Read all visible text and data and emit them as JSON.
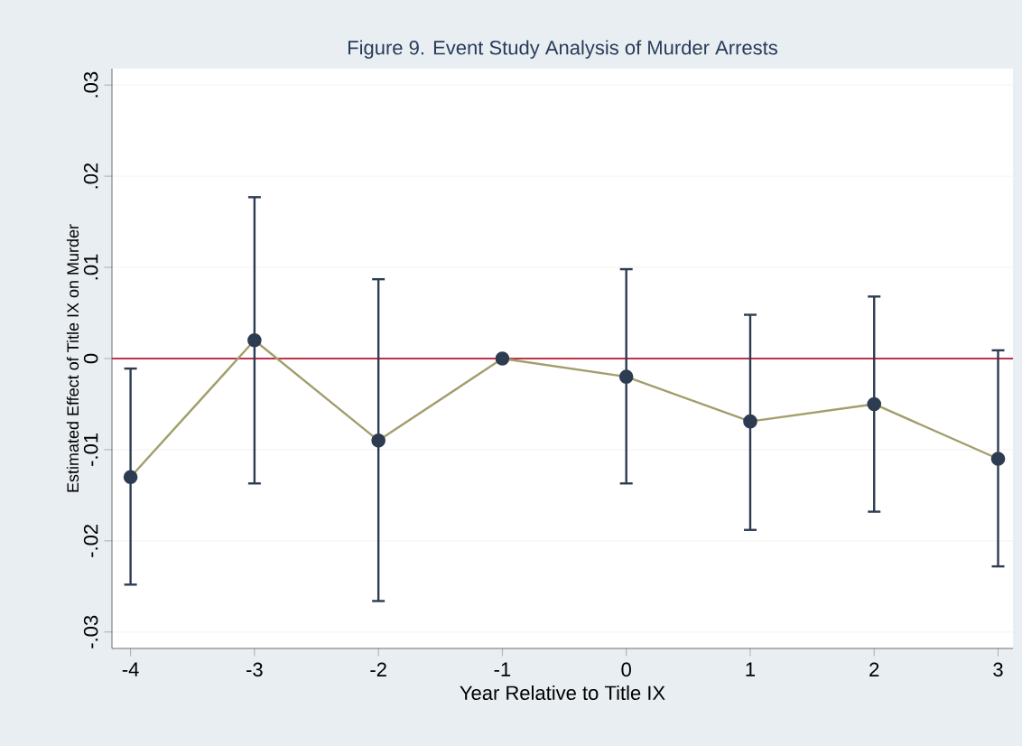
{
  "chart_data": {
    "type": "line",
    "title": "Figure 9. Event Study Analysis of Murder Arrests",
    "xlabel": "Year Relative to Title IX",
    "ylabel": "Estimated Effect of Title IX on Murder",
    "x": [
      -4,
      -3,
      -2,
      -1,
      0,
      1,
      2,
      3
    ],
    "series": [
      {
        "color": "#a39e6c",
        "marker": "circle",
        "values": [
          -0.013,
          0.002,
          -0.009,
          0,
          -0.002,
          -0.0069,
          -0.005,
          -0.011
        ],
        "errors": [
          [
            -0.0248,
            -0.0011
          ],
          [
            -0.0137,
            0.0177
          ],
          [
            -0.0266,
            0.0087
          ],
          null,
          [
            -0.0137,
            0.0098
          ],
          [
            -0.0188,
            0.0048
          ],
          [
            -0.0168,
            0.0068
          ],
          [
            -0.0228,
            0.0009
          ]
        ]
      }
    ],
    "xlim": [
      -4.15,
      3.12
    ],
    "xticks": [
      -4,
      -3,
      -2,
      -1,
      0,
      1,
      2,
      3
    ],
    "ylim": [
      -0.0318,
      0.0318
    ],
    "yticks": [
      {
        "value": -0.03,
        "label": "-.03"
      },
      {
        "value": -0.02,
        "label": "-.02"
      },
      {
        "value": -0.01,
        "label": "-.01"
      },
      0,
      {
        "value": 0.01,
        "label": ".01"
      },
      {
        "value": 0.02,
        "label": ".02"
      },
      {
        "value": 0.03,
        "label": ".03"
      }
    ],
    "grid": "y",
    "ref_lines": [
      {
        "axis": "y",
        "value": 0,
        "color": "#c0304a"
      }
    ]
  }
}
